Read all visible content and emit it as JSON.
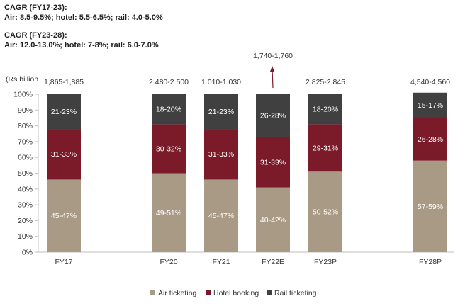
{
  "annotations": {
    "cagr_fy17_23": {
      "title": "CAGR (FY17-23):",
      "detail": "Air: 8.5-9.5%; hotel: 5.5-6.5%; rail: 4.0-5.0%"
    },
    "cagr_fy23_28": {
      "title": "CAGR (FY23-28):",
      "detail": "Air: 12.0-13.0%; hotel: 7-8%; rail: 6.0-7.0%"
    }
  },
  "chart_data": {
    "type": "bar",
    "stacked": true,
    "percent": true,
    "unit_label": "(Rs billion",
    "categories": [
      "FY17",
      "FY20",
      "FY21",
      "FY22E",
      "FY23P",
      "FY28P"
    ],
    "totals": [
      "1,865-1,885",
      "2.480-2.500",
      "1.010-1.030",
      "1,740-1,760",
      "2.825-2.845",
      "4,540-4,560"
    ],
    "total_arrow_category": "FY22E",
    "ylim": [
      0,
      100
    ],
    "yticks": [
      "0%",
      "10%",
      "20%",
      "30%",
      "40%",
      "50%",
      "60%",
      "70%",
      "80%",
      "90%",
      "100%"
    ],
    "series": [
      {
        "name": "Air ticketing",
        "color": "#a99a86",
        "values": [
          46,
          50,
          46,
          41,
          51,
          58
        ],
        "labels": [
          "45-47%",
          "49-51%",
          "45-47%",
          "40-42%",
          "50-52%",
          "57-59%"
        ]
      },
      {
        "name": "Hotel booking",
        "color": "#7b1a28",
        "values": [
          32,
          31,
          32,
          32,
          30,
          27
        ],
        "labels": [
          "31-33%",
          "30-32%",
          "31-33%",
          "31-33%",
          "29-31%",
          "26-28%"
        ]
      },
      {
        "name": "Rail ticketing",
        "color": "#404040",
        "values": [
          22,
          19,
          22,
          27,
          19,
          16
        ],
        "labels": [
          "21-23%",
          "18-20%",
          "21-23%",
          "26-28%",
          "18-20%",
          "15-17%"
        ]
      }
    ],
    "legend": [
      "Air ticketing",
      "Hotel booking",
      "Rail ticketing"
    ],
    "legend_position": "bottom"
  }
}
